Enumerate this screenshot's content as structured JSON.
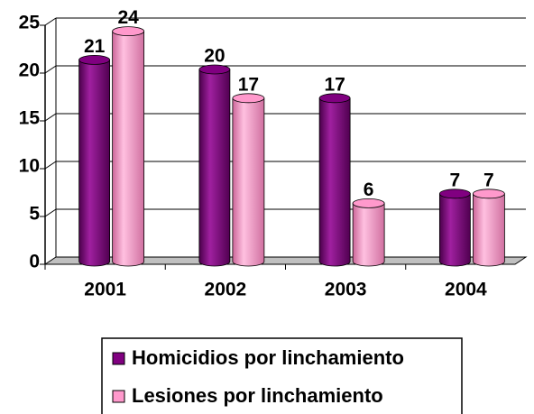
{
  "chart_data": {
    "type": "bar",
    "categories": [
      "2001",
      "2002",
      "2003",
      "2004"
    ],
    "series": [
      {
        "name": "Homicidios por linchamiento",
        "color": "#800080",
        "values": [
          21,
          20,
          17,
          7
        ]
      },
      {
        "name": "Lesiones por linchamiento",
        "color": "#ff99cc",
        "values": [
          24,
          17,
          6,
          7
        ]
      }
    ],
    "ylim": [
      0,
      25
    ],
    "yticks": [
      0,
      5,
      10,
      15,
      20,
      25
    ],
    "grid": true,
    "legend": "bottom"
  }
}
